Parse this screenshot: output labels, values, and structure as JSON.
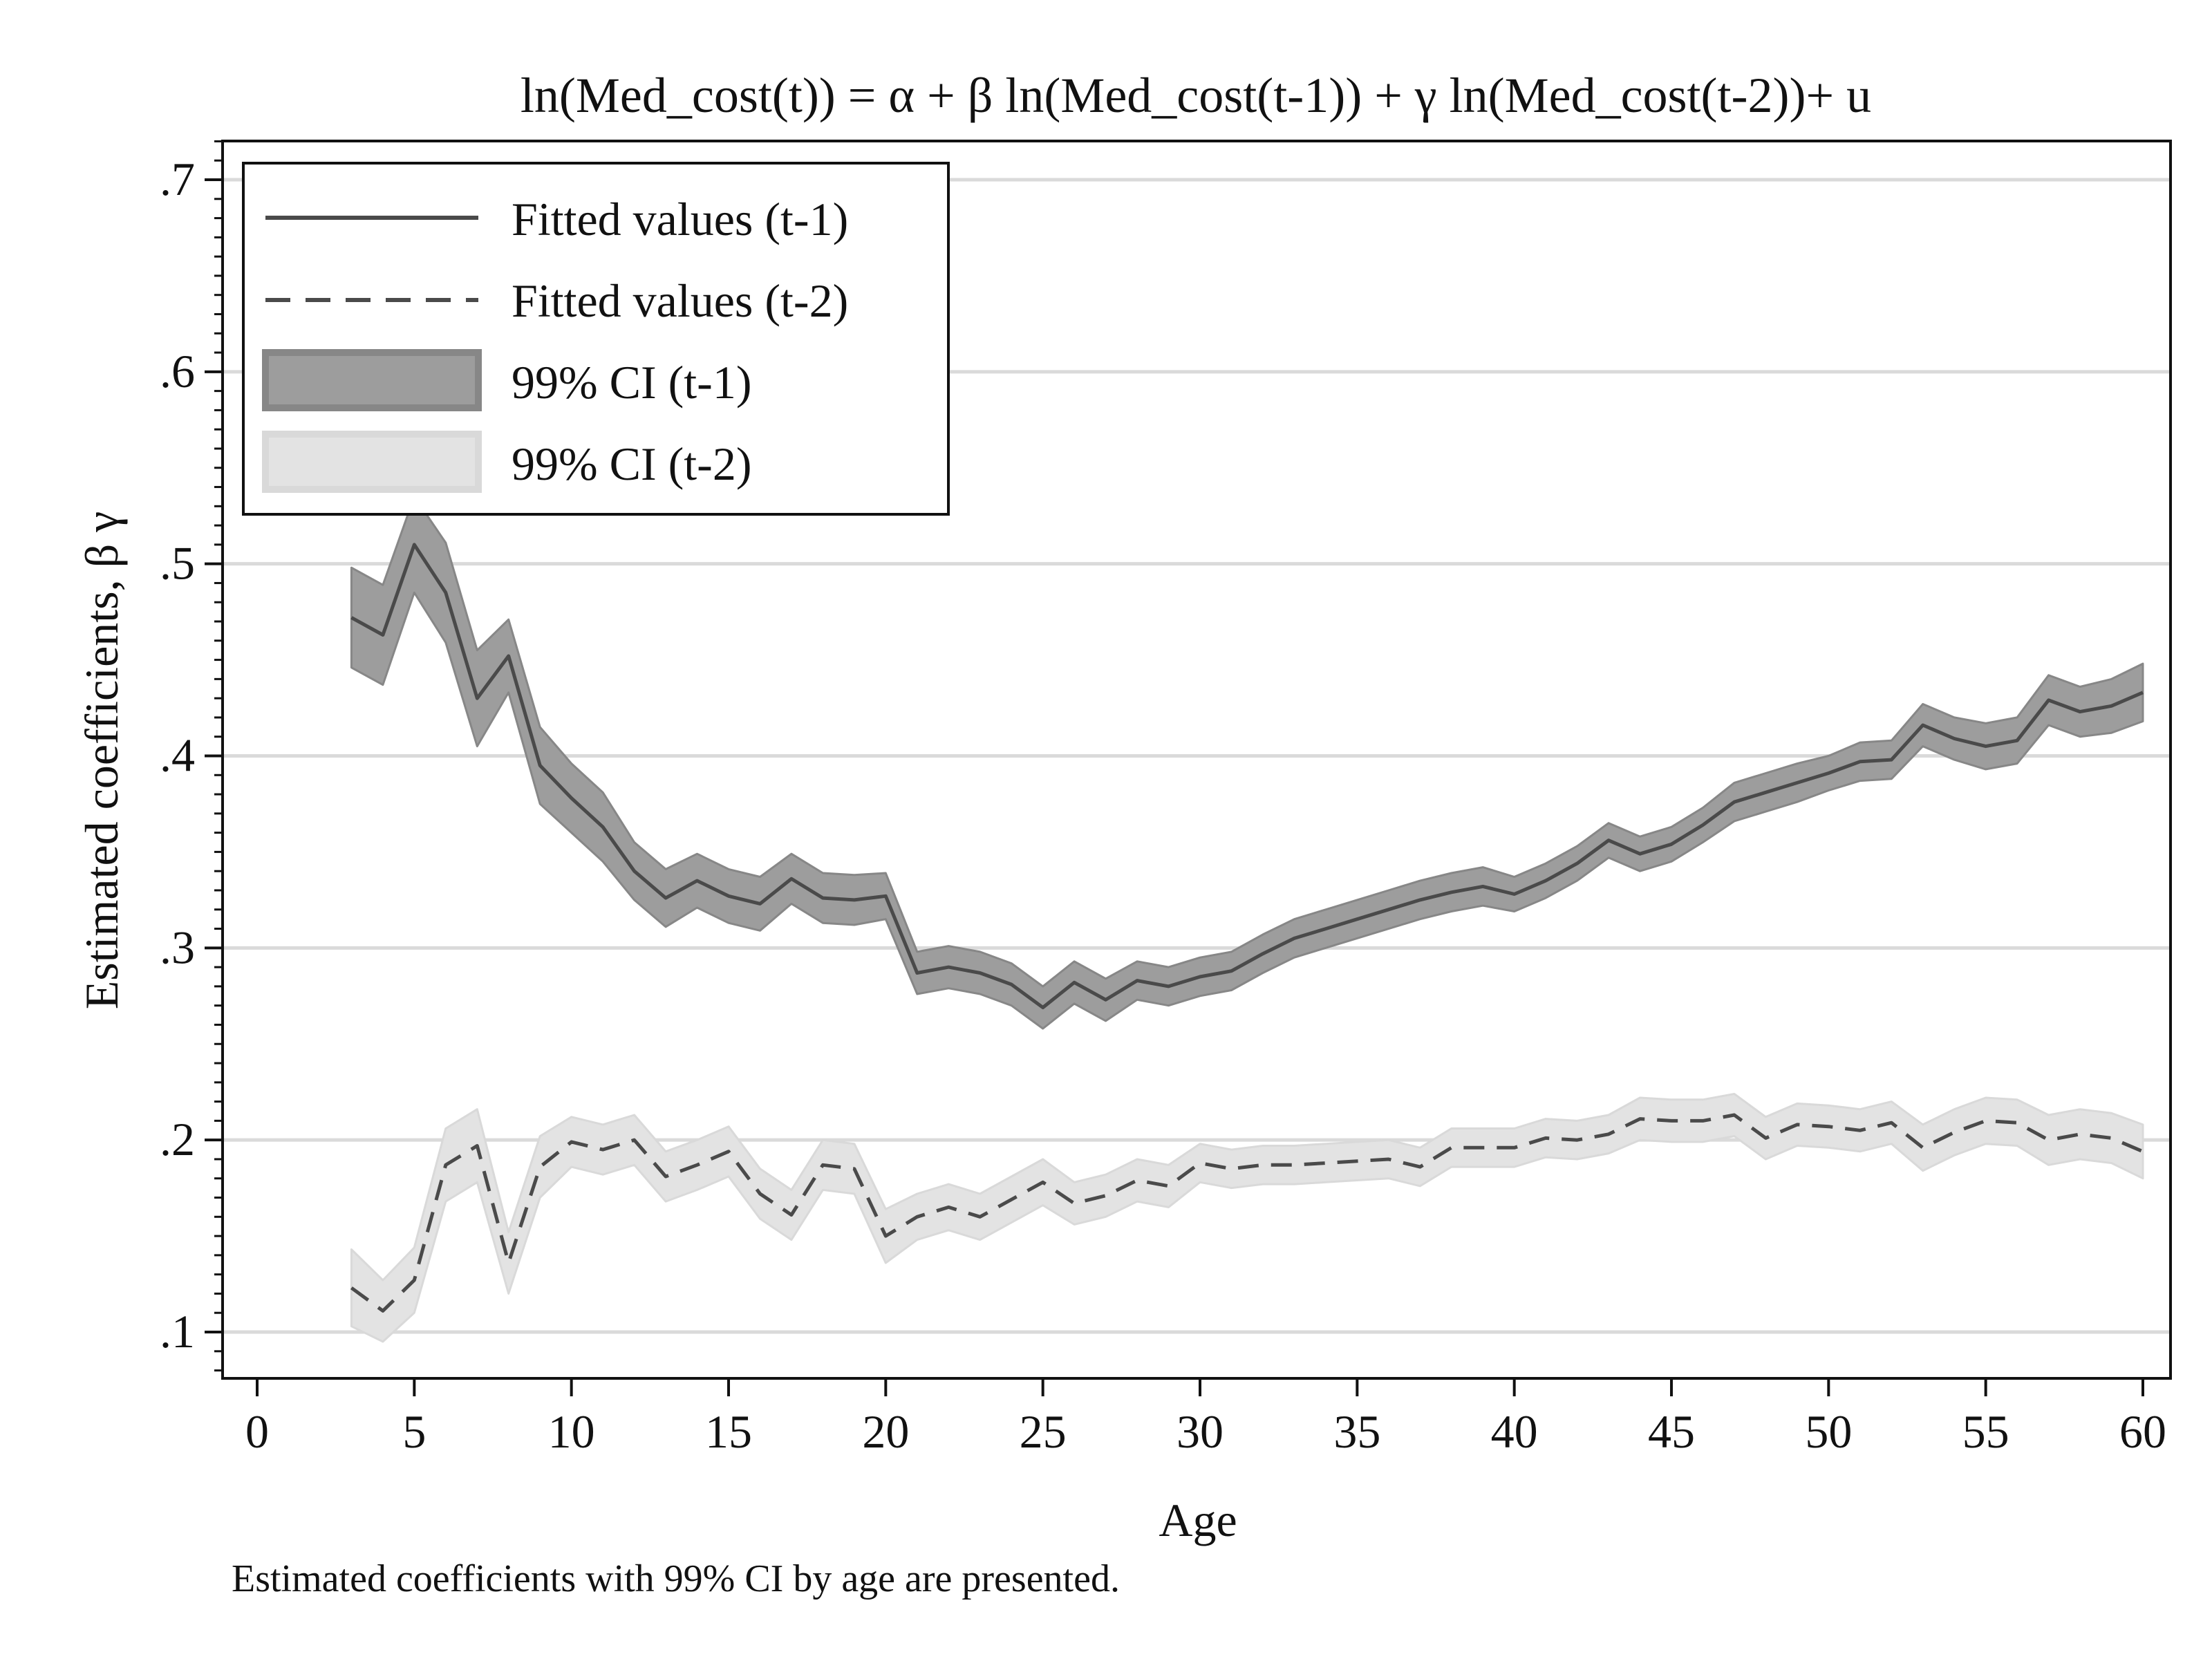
{
  "chart_data": {
    "type": "line",
    "title": "ln(Med_cost(t)) = α + β ln(Med_cost(t-1)) + γ ln(Med_cost(t-2))+ u",
    "xlabel": "Age",
    "ylabel": "Estimated coefficients, β γ",
    "note": "Estimated coefficients with 99% CI by age are presented.",
    "xlim": [
      0,
      60
    ],
    "ylim": [
      0.08,
      0.72
    ],
    "x_ticks": [
      0,
      5,
      10,
      15,
      20,
      25,
      30,
      35,
      40,
      45,
      50,
      55,
      60
    ],
    "x_tick_labels": [
      "0",
      "5",
      "10",
      "15",
      "20",
      "25",
      "30",
      "35",
      "40",
      "45",
      "50",
      "55",
      "60"
    ],
    "y_ticks": [
      0.1,
      0.2,
      0.3,
      0.4,
      0.5,
      0.6,
      0.7
    ],
    "y_tick_labels": [
      ".1",
      ".2",
      ".3",
      ".4",
      ".5",
      ".6",
      ".7"
    ],
    "gridlines": "horizontal",
    "legend_position": "top-left",
    "x": [
      3,
      4,
      5,
      6,
      7,
      8,
      9,
      10,
      11,
      12,
      13,
      14,
      15,
      16,
      17,
      18,
      19,
      20,
      21,
      22,
      23,
      24,
      25,
      26,
      27,
      28,
      29,
      30,
      31,
      32,
      33,
      34,
      35,
      36,
      37,
      38,
      39,
      40,
      41,
      42,
      43,
      44,
      45,
      46,
      47,
      48,
      49,
      50,
      51,
      52,
      53,
      54,
      55,
      56,
      57,
      58,
      59,
      60
    ],
    "series": [
      {
        "name": "Fitted values (t-1)",
        "style": "solid",
        "color": "#4a4a4a",
        "values": [
          0.472,
          0.463,
          0.51,
          0.485,
          0.43,
          0.452,
          0.395,
          0.378,
          0.363,
          0.34,
          0.326,
          0.335,
          0.327,
          0.323,
          0.336,
          0.326,
          0.325,
          0.327,
          0.287,
          0.29,
          0.287,
          0.281,
          0.269,
          0.282,
          0.273,
          0.283,
          0.28,
          0.285,
          0.288,
          0.297,
          0.305,
          0.31,
          0.315,
          0.32,
          0.325,
          0.329,
          0.332,
          0.328,
          0.335,
          0.344,
          0.356,
          0.349,
          0.354,
          0.364,
          0.376,
          0.381,
          0.386,
          0.391,
          0.397,
          0.398,
          0.416,
          0.409,
          0.405,
          0.408,
          0.429,
          0.423,
          0.426,
          0.433
        ]
      },
      {
        "name": "Fitted values (t-2)",
        "style": "dashed",
        "color": "#4a4a4a",
        "values": [
          0.123,
          0.111,
          0.127,
          0.187,
          0.197,
          0.136,
          0.186,
          0.199,
          0.195,
          0.2,
          0.181,
          0.187,
          0.194,
          0.172,
          0.161,
          0.187,
          0.185,
          0.15,
          0.16,
          0.165,
          0.16,
          0.169,
          0.178,
          0.167,
          0.171,
          0.179,
          0.176,
          0.188,
          0.185,
          0.187,
          0.187,
          0.188,
          0.189,
          0.19,
          0.186,
          0.196,
          0.196,
          0.196,
          0.201,
          0.2,
          0.203,
          0.211,
          0.21,
          0.21,
          0.213,
          0.201,
          0.208,
          0.207,
          0.205,
          0.209,
          0.196,
          0.204,
          0.21,
          0.209,
          0.2,
          0.203,
          0.201,
          0.194
        ]
      }
    ],
    "bands": [
      {
        "name": "99% CI (t-1)",
        "color": "#9d9d9d",
        "edge_color": "#878787",
        "lower": [
          0.446,
          0.437,
          0.485,
          0.459,
          0.405,
          0.433,
          0.375,
          0.36,
          0.345,
          0.325,
          0.311,
          0.321,
          0.313,
          0.309,
          0.323,
          0.313,
          0.312,
          0.315,
          0.276,
          0.279,
          0.276,
          0.27,
          0.258,
          0.271,
          0.262,
          0.273,
          0.27,
          0.275,
          0.278,
          0.287,
          0.295,
          0.3,
          0.305,
          0.31,
          0.315,
          0.319,
          0.322,
          0.319,
          0.326,
          0.335,
          0.347,
          0.34,
          0.345,
          0.355,
          0.366,
          0.371,
          0.376,
          0.382,
          0.387,
          0.388,
          0.405,
          0.398,
          0.393,
          0.396,
          0.416,
          0.41,
          0.412,
          0.418
        ],
        "upper": [
          0.498,
          0.489,
          0.535,
          0.511,
          0.455,
          0.471,
          0.415,
          0.396,
          0.381,
          0.355,
          0.341,
          0.349,
          0.341,
          0.337,
          0.349,
          0.339,
          0.338,
          0.339,
          0.298,
          0.301,
          0.298,
          0.292,
          0.28,
          0.293,
          0.284,
          0.293,
          0.29,
          0.295,
          0.298,
          0.307,
          0.315,
          0.32,
          0.325,
          0.33,
          0.335,
          0.339,
          0.342,
          0.337,
          0.344,
          0.353,
          0.365,
          0.358,
          0.363,
          0.373,
          0.386,
          0.391,
          0.396,
          0.4,
          0.407,
          0.408,
          0.427,
          0.42,
          0.417,
          0.42,
          0.442,
          0.436,
          0.44,
          0.448
        ]
      },
      {
        "name": "99% CI (t-2)",
        "color": "#e3e3e3",
        "edge_color": "#d9d9d9",
        "lower": [
          0.103,
          0.095,
          0.11,
          0.168,
          0.178,
          0.12,
          0.17,
          0.186,
          0.182,
          0.187,
          0.168,
          0.174,
          0.181,
          0.159,
          0.148,
          0.174,
          0.172,
          0.136,
          0.148,
          0.153,
          0.148,
          0.157,
          0.166,
          0.156,
          0.16,
          0.168,
          0.165,
          0.178,
          0.175,
          0.177,
          0.177,
          0.178,
          0.179,
          0.18,
          0.176,
          0.186,
          0.186,
          0.186,
          0.191,
          0.19,
          0.193,
          0.2,
          0.199,
          0.199,
          0.202,
          0.19,
          0.197,
          0.196,
          0.194,
          0.198,
          0.184,
          0.192,
          0.198,
          0.197,
          0.187,
          0.19,
          0.188,
          0.18
        ],
        "upper": [
          0.143,
          0.127,
          0.144,
          0.206,
          0.216,
          0.152,
          0.202,
          0.212,
          0.208,
          0.213,
          0.194,
          0.2,
          0.207,
          0.185,
          0.174,
          0.2,
          0.198,
          0.164,
          0.172,
          0.177,
          0.172,
          0.181,
          0.19,
          0.178,
          0.182,
          0.19,
          0.187,
          0.198,
          0.195,
          0.197,
          0.197,
          0.198,
          0.199,
          0.2,
          0.196,
          0.206,
          0.206,
          0.206,
          0.211,
          0.21,
          0.213,
          0.222,
          0.221,
          0.221,
          0.224,
          0.212,
          0.219,
          0.218,
          0.216,
          0.22,
          0.208,
          0.216,
          0.222,
          0.221,
          0.213,
          0.216,
          0.214,
          0.208
        ]
      }
    ],
    "legend": [
      {
        "label": "Fitted values (t-1)",
        "kind": "solid"
      },
      {
        "label": "Fitted values (t-2)",
        "kind": "dashed"
      },
      {
        "label": "99% CI (t-1)",
        "kind": "band-dark"
      },
      {
        "label": "99% CI (t-2)",
        "kind": "band-light"
      }
    ]
  }
}
